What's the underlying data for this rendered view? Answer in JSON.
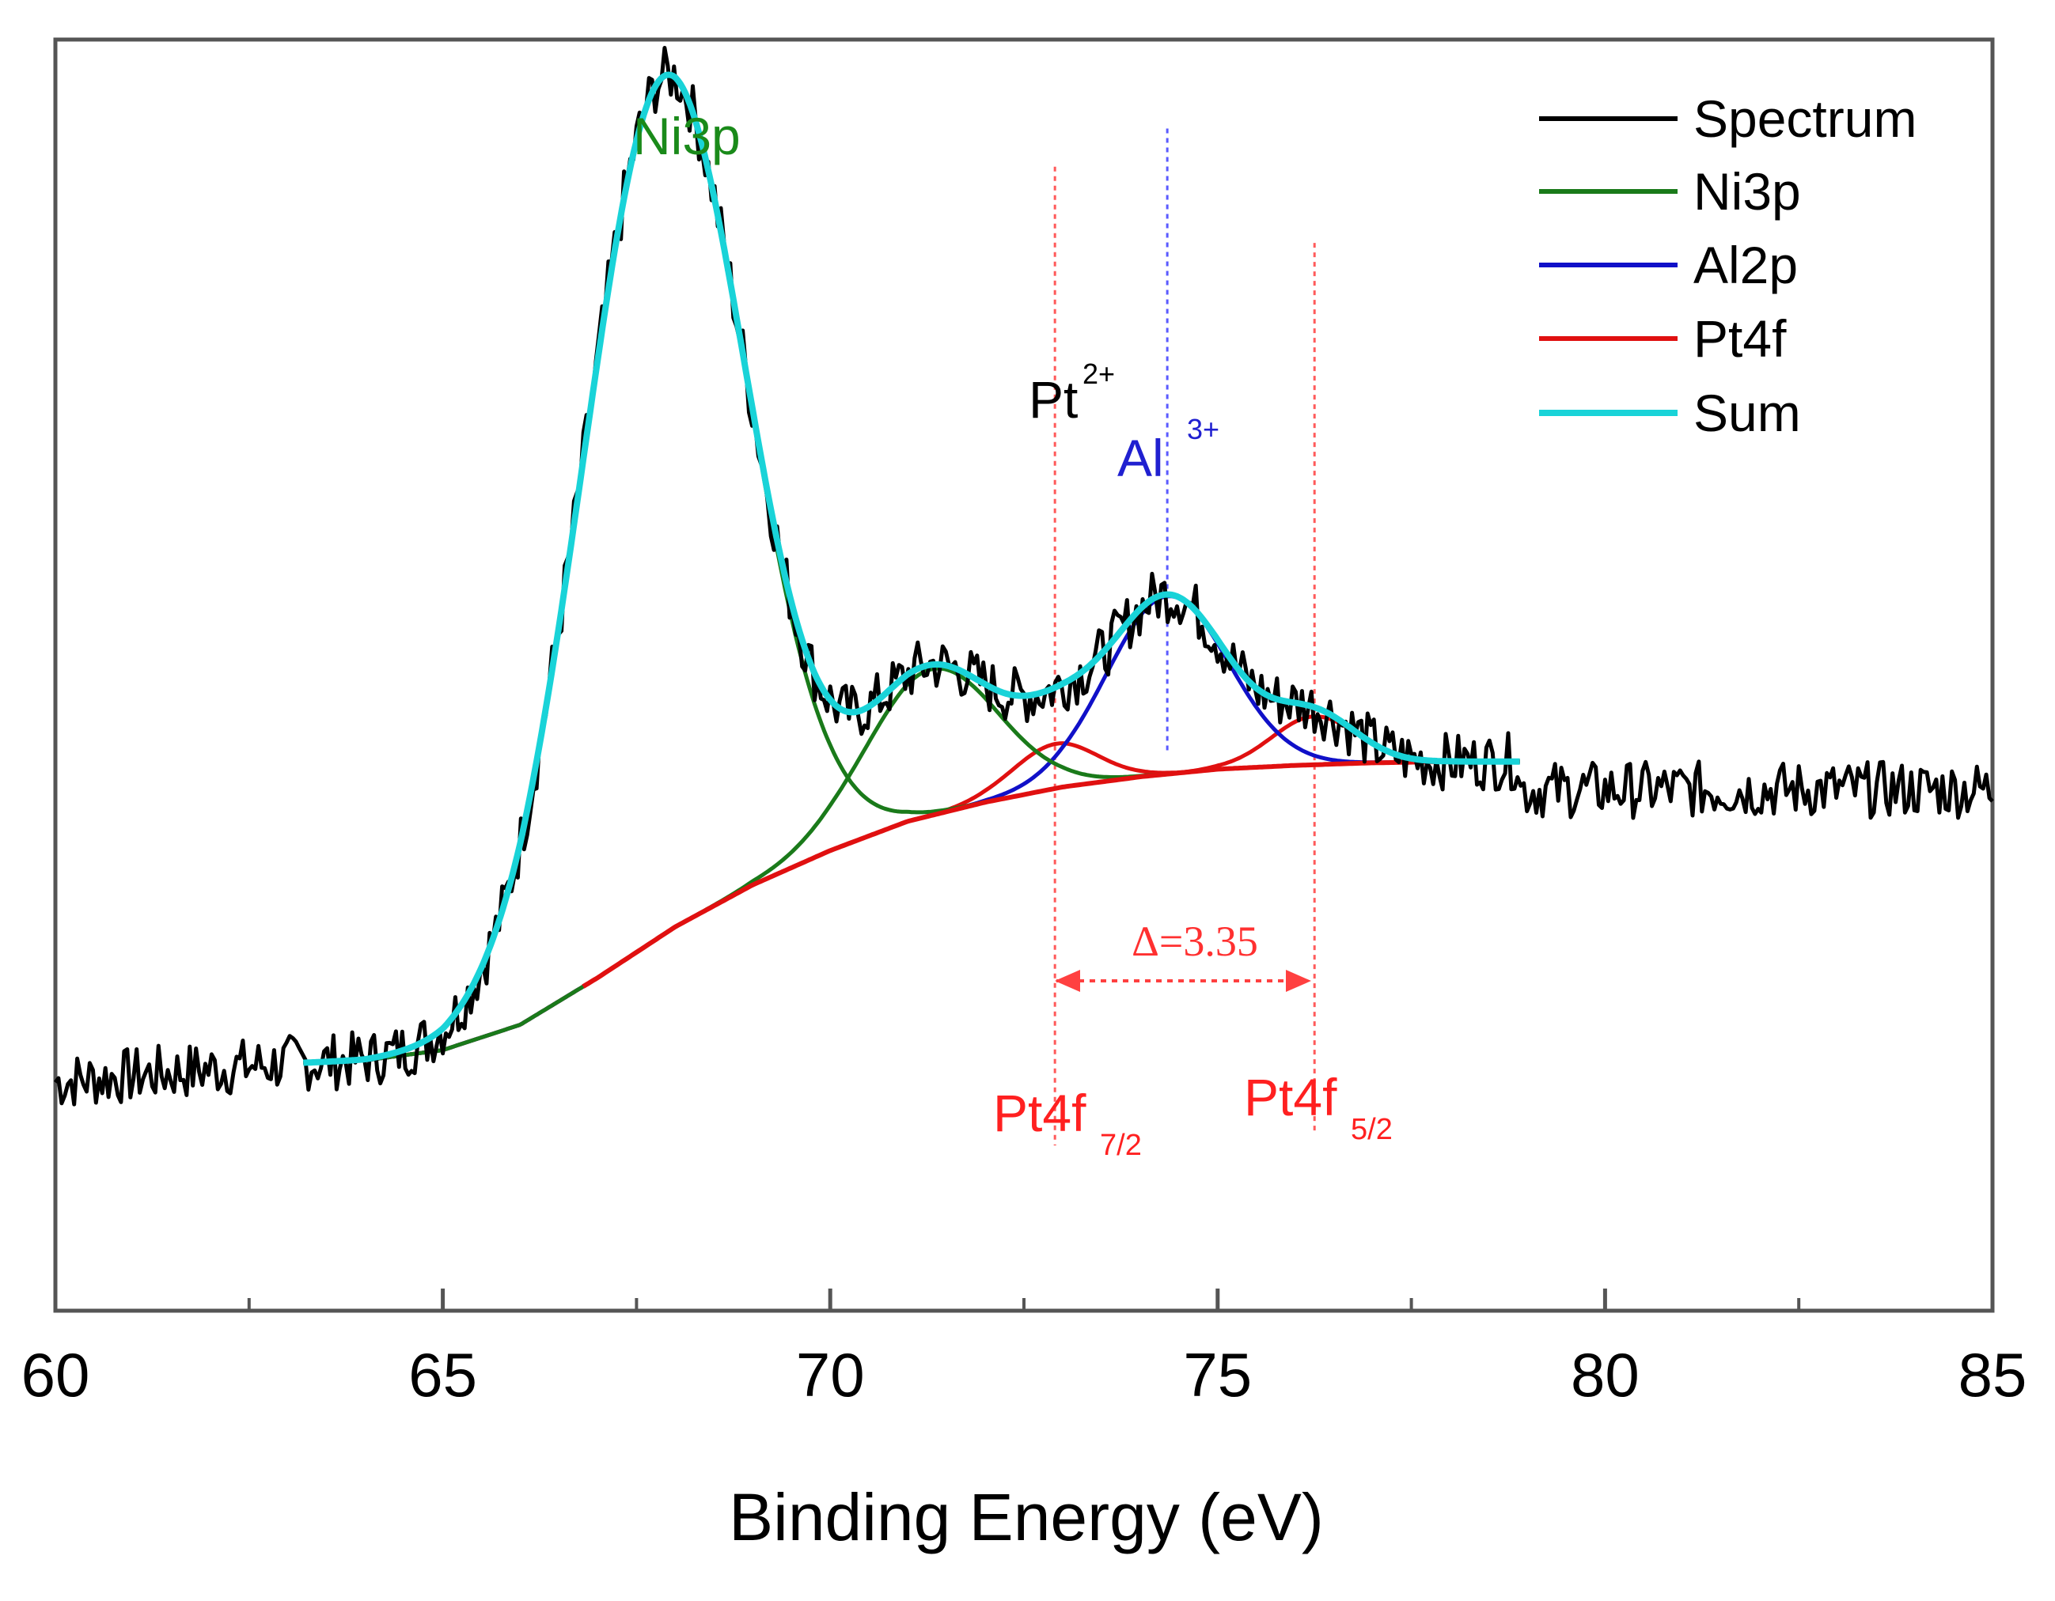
{
  "chart_data": {
    "type": "line",
    "title": "",
    "xlabel": "Binding Energy (eV)",
    "ylabel": "",
    "xlim": [
      60,
      85
    ],
    "ylim": [
      0,
      1.0
    ],
    "xticks": [
      60,
      65,
      70,
      75,
      80,
      85
    ],
    "xtick_labels": [
      "60",
      "65",
      "70",
      "75",
      "80",
      "85"
    ],
    "legend_position": "top-right",
    "colors": {
      "spectrum": "#000000",
      "ni3p": "#1a7a1a",
      "al2p": "#1010c8",
      "pt4f": "#e01010",
      "sum": "#19d3d8",
      "ref_lines": "#ff5a5a",
      "al_ref_line": "#5a5aff"
    },
    "legend": [
      {
        "key": "spectrum",
        "label": "Spectrum"
      },
      {
        "key": "ni3p",
        "label": "Ni3p"
      },
      {
        "key": "al2p",
        "label": "Al2p"
      },
      {
        "key": "pt4f",
        "label": "Pt4f"
      },
      {
        "key": "sum",
        "label": "Sum"
      }
    ],
    "background": {
      "x": [
        63.2,
        64,
        65,
        66,
        67,
        68,
        69,
        70,
        71,
        72,
        73,
        74,
        75,
        76,
        77,
        78,
        78.9
      ],
      "y": [
        0.195,
        0.197,
        0.205,
        0.225,
        0.262,
        0.302,
        0.335,
        0.362,
        0.385,
        0.4,
        0.412,
        0.42,
        0.426,
        0.429,
        0.431,
        0.432,
        0.432
      ]
    },
    "series": [
      {
        "name": "Ni3p",
        "key": "ni3p",
        "peaks": [
          {
            "center": 67.85,
            "amp": 0.675,
            "width": 1.05
          },
          {
            "center": 71.3,
            "amp": 0.115,
            "width": 0.85
          }
        ]
      },
      {
        "name": "Al2p",
        "key": "al2p",
        "peaks": [
          {
            "center": 74.35,
            "amp": 0.14,
            "width": 0.78
          }
        ]
      },
      {
        "name": "Pt4f",
        "key": "pt4f",
        "peaks": [
          {
            "center": 72.9,
            "amp": 0.035,
            "width": 0.55
          },
          {
            "center": 76.25,
            "amp": 0.038,
            "width": 0.55
          }
        ]
      },
      {
        "name": "Sum",
        "key": "sum",
        "fit_range": [
          63.2,
          78.9
        ]
      },
      {
        "name": "Spectrum",
        "key": "spectrum",
        "range": [
          60,
          85
        ],
        "left_baseline": 0.18,
        "right_baseline": 0.41,
        "noise": 0.014
      }
    ],
    "annotations": {
      "ni3p_label": "Ni3p",
      "pt2_base": "Pt",
      "pt2_sup": "2+",
      "al3_base": "Al",
      "al3_sup": "3+",
      "pt4f72_base": "Pt4f",
      "pt4f72_sub": "7/2",
      "pt4f52_base": "Pt4f",
      "pt4f52_sub": "5/2",
      "delta_text": "Δ=3.35",
      "pt4f72_position": 72.9,
      "pt4f52_position": 76.25,
      "al3_position": 74.35
    }
  }
}
